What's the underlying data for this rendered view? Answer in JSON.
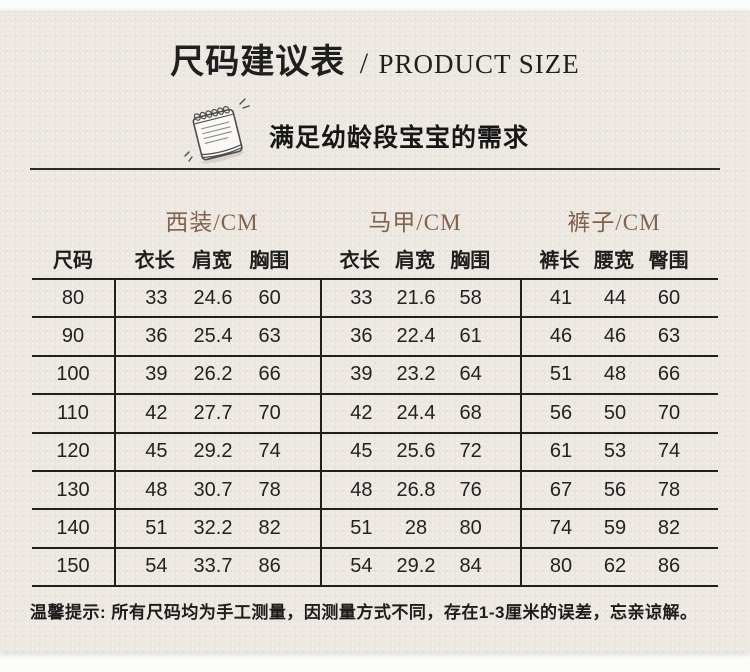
{
  "page": {
    "title_cn": "尺码建议表",
    "title_sep": "/",
    "title_en": "PRODUCT SIZE",
    "subtitle": "满足幼龄段宝宝的需求",
    "note": "温馨提示: 所有尺码均为手工测量，因测量方式不同，存在1-3厘米的误差，忘亲谅解。"
  },
  "colors": {
    "panel_bg": "#ece7e0",
    "accent_brown": "#82614f",
    "line": "#1f1f1f",
    "text": "#262626"
  },
  "icons": [
    {
      "name": "notepad-sketch-icon",
      "meaning": "hand-drawn spiral notepad"
    }
  ],
  "table": {
    "size_header": "尺码",
    "groups": [
      {
        "label": "西装/CM",
        "columns": [
          "衣长",
          "肩宽",
          "胸围"
        ]
      },
      {
        "label": "马甲/CM",
        "columns": [
          "衣长",
          "肩宽",
          "胸围"
        ]
      },
      {
        "label": "裤子/CM",
        "columns": [
          "裤长",
          "腰宽",
          "臀围"
        ]
      }
    ],
    "rows": [
      {
        "size": "80",
        "values": [
          [
            "33",
            "24.6",
            "60"
          ],
          [
            "33",
            "21.6",
            "58"
          ],
          [
            "41",
            "44",
            "60"
          ]
        ]
      },
      {
        "size": "90",
        "values": [
          [
            "36",
            "25.4",
            "63"
          ],
          [
            "36",
            "22.4",
            "61"
          ],
          [
            "46",
            "46",
            "63"
          ]
        ]
      },
      {
        "size": "100",
        "values": [
          [
            "39",
            "26.2",
            "66"
          ],
          [
            "39",
            "23.2",
            "64"
          ],
          [
            "51",
            "48",
            "66"
          ]
        ]
      },
      {
        "size": "110",
        "values": [
          [
            "42",
            "27.7",
            "70"
          ],
          [
            "42",
            "24.4",
            "68"
          ],
          [
            "56",
            "50",
            "70"
          ]
        ]
      },
      {
        "size": "120",
        "values": [
          [
            "45",
            "29.2",
            "74"
          ],
          [
            "45",
            "25.6",
            "72"
          ],
          [
            "61",
            "53",
            "74"
          ]
        ]
      },
      {
        "size": "130",
        "values": [
          [
            "48",
            "30.7",
            "78"
          ],
          [
            "48",
            "26.8",
            "76"
          ],
          [
            "67",
            "56",
            "78"
          ]
        ]
      },
      {
        "size": "140",
        "values": [
          [
            "51",
            "32.2",
            "82"
          ],
          [
            "51",
            "28",
            "80"
          ],
          [
            "74",
            "59",
            "82"
          ]
        ]
      },
      {
        "size": "150",
        "values": [
          [
            "54",
            "33.7",
            "86"
          ],
          [
            "54",
            "29.2",
            "84"
          ],
          [
            "80",
            "62",
            "86"
          ]
        ]
      }
    ]
  }
}
